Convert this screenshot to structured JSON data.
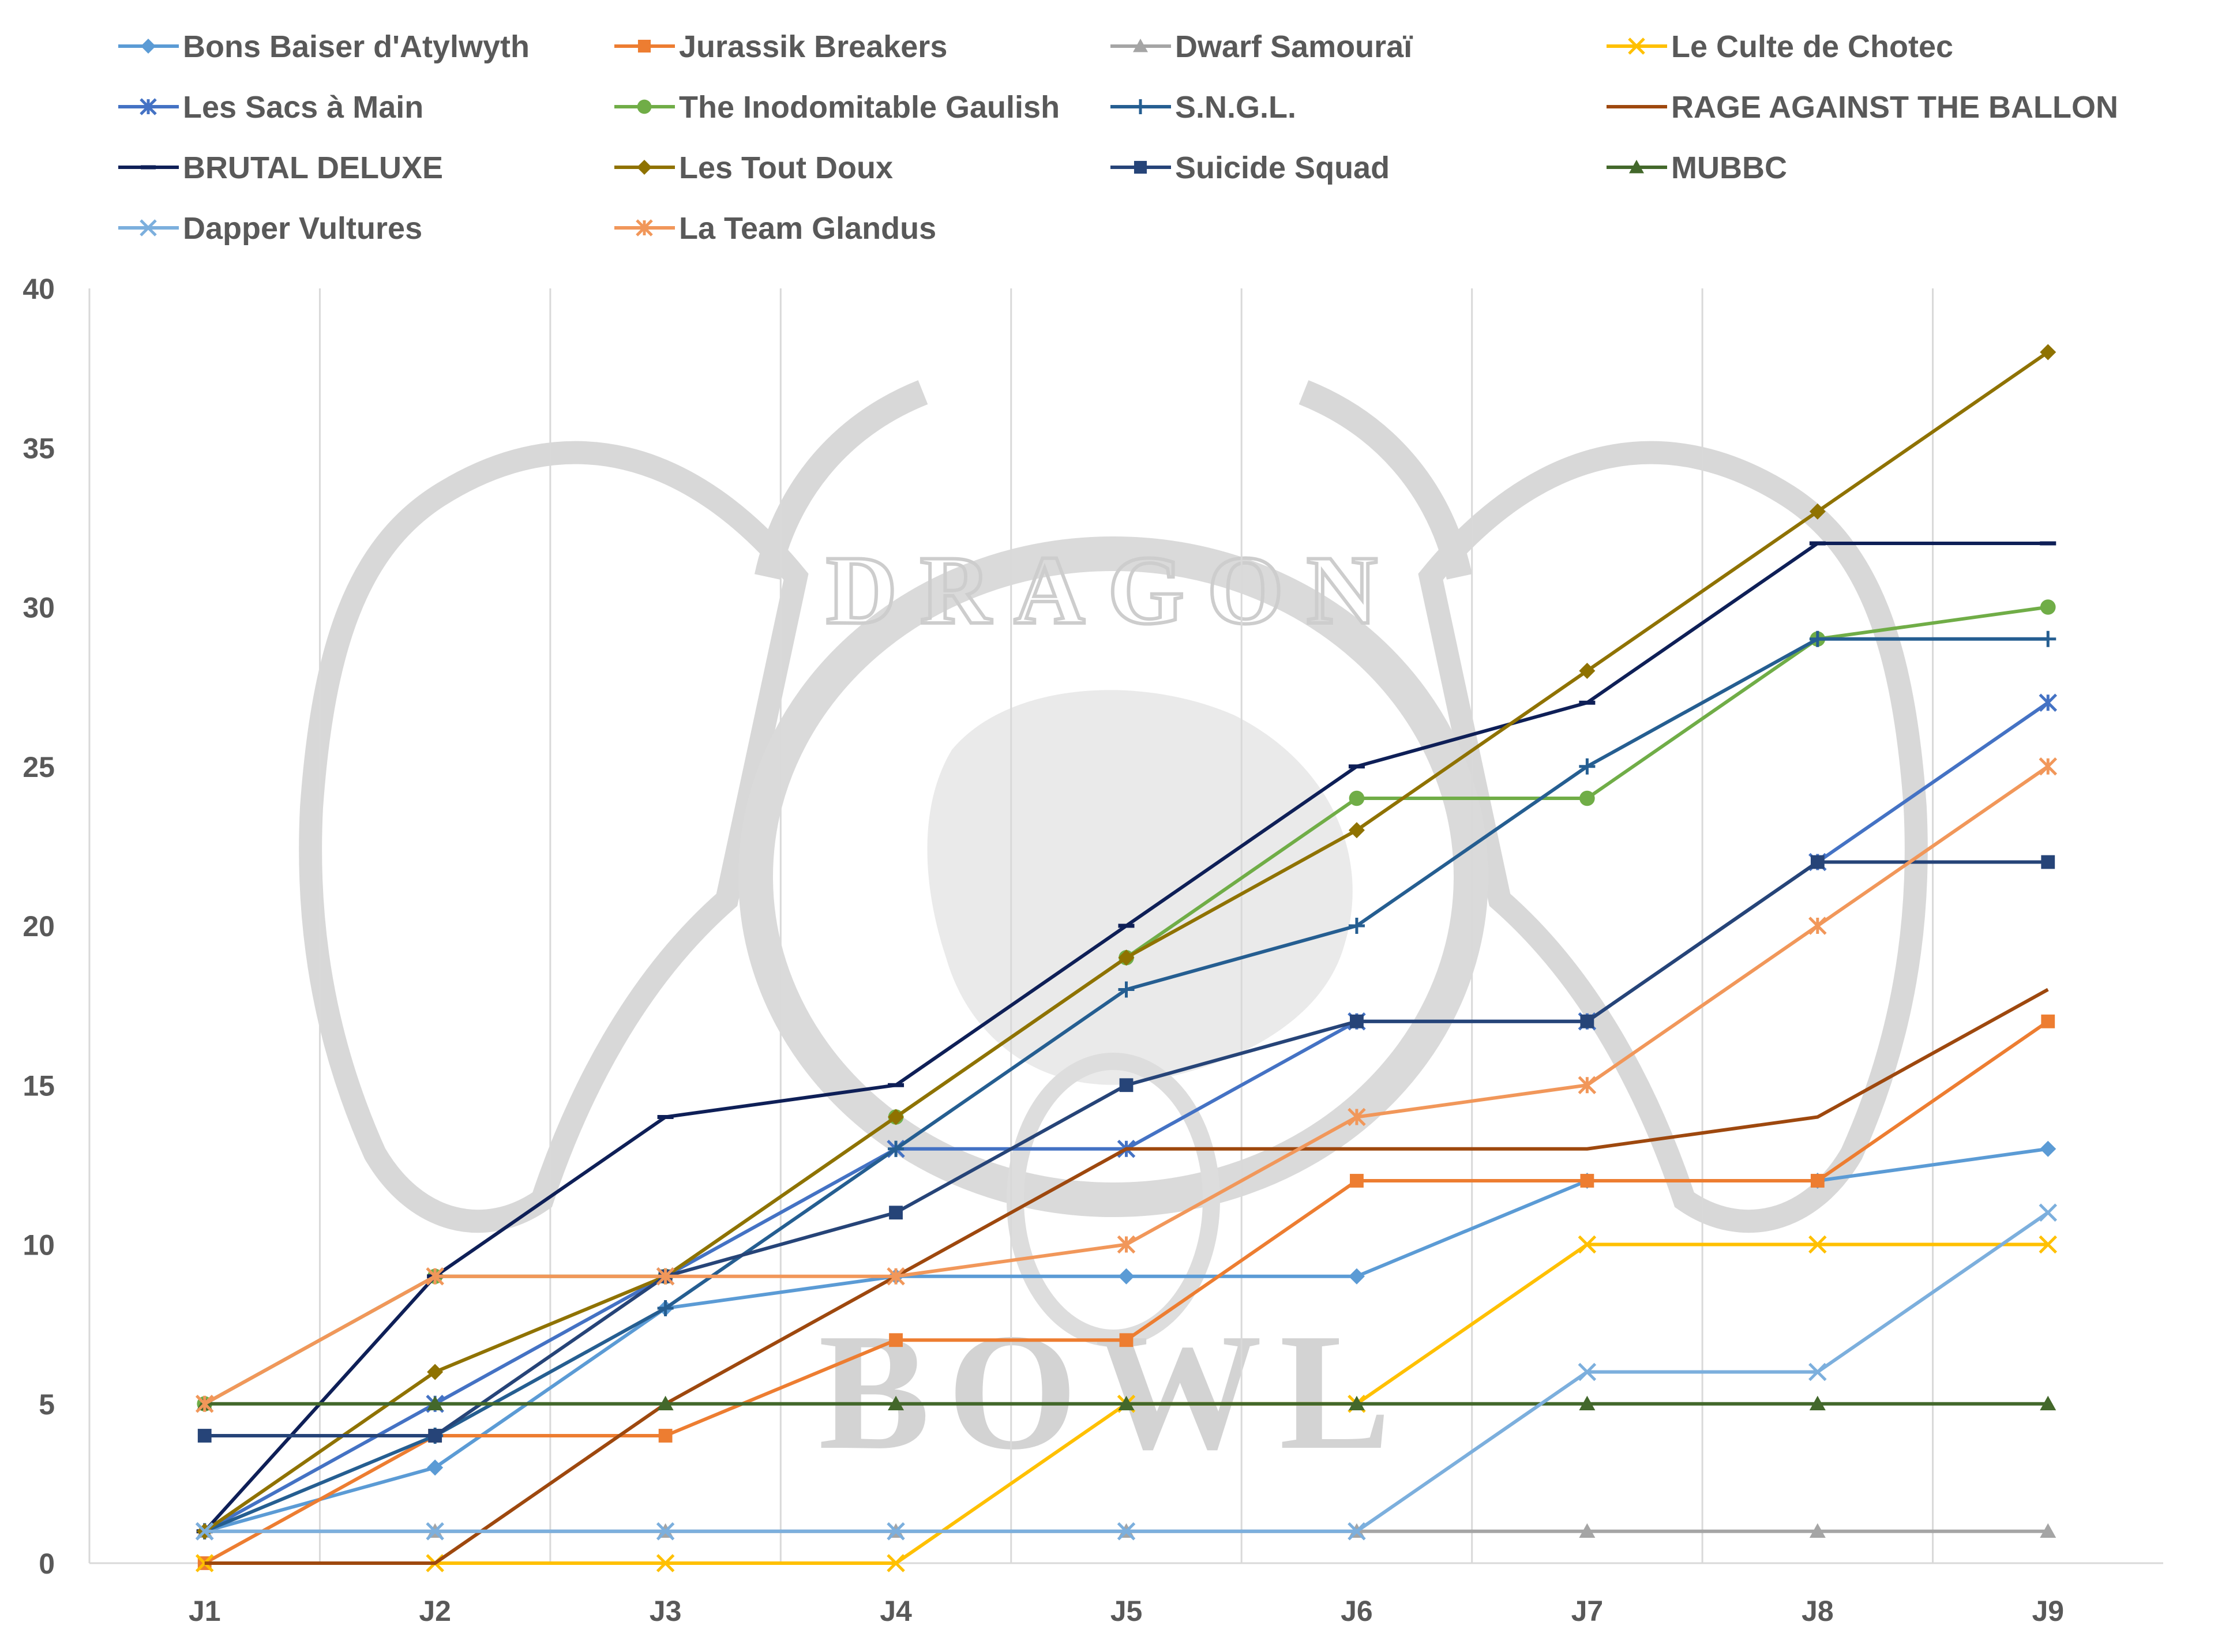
{
  "chart_data": {
    "type": "line",
    "title": "",
    "xlabel": "",
    "ylabel": "",
    "categories": [
      "J1",
      "J2",
      "J3",
      "J4",
      "J5",
      "J6",
      "J7",
      "J8",
      "J9"
    ],
    "ylim": [
      0,
      40
    ],
    "yticks": [
      0,
      5,
      10,
      15,
      20,
      25,
      30,
      35,
      40
    ],
    "grid": {
      "vertical": true,
      "horizontal": false
    },
    "legend_position": "top",
    "watermark": {
      "top_text": "DRAGON",
      "bottom_text": "BOWL"
    },
    "series": [
      {
        "name": "Bons Baiser d'Atylwyth",
        "color": "#5B9BD5",
        "marker": "diamond",
        "values": [
          1,
          3,
          8,
          9,
          9,
          9,
          12,
          12,
          13
        ]
      },
      {
        "name": "Jurassik Breakers",
        "color": "#ED7D31",
        "marker": "square",
        "values": [
          0,
          4,
          4,
          7,
          7,
          12,
          12,
          12,
          17
        ]
      },
      {
        "name": "Dwarf Samouraï",
        "color": "#A5A5A5",
        "marker": "triangle",
        "values": [
          1,
          1,
          1,
          1,
          1,
          1,
          1,
          1,
          1
        ]
      },
      {
        "name": "Le Culte de Chotec",
        "color": "#FFC000",
        "marker": "x",
        "values": [
          0,
          0,
          0,
          0,
          5,
          5,
          10,
          10,
          10
        ]
      },
      {
        "name": "Les Sacs à Main",
        "color": "#4472C4",
        "marker": "star",
        "values": [
          1,
          5,
          9,
          13,
          13,
          17,
          17,
          22,
          27
        ]
      },
      {
        "name": "The Inodomitable Gaulish",
        "color": "#70AD47",
        "marker": "circle",
        "values": [
          5,
          9,
          9,
          14,
          19,
          24,
          24,
          29,
          30
        ]
      },
      {
        "name": "S.N.G.L.",
        "color": "#255E91",
        "marker": "plus",
        "values": [
          1,
          4,
          8,
          13,
          18,
          20,
          25,
          29,
          29
        ]
      },
      {
        "name": "RAGE AGAINST THE BALLON",
        "color": "#9E480E",
        "marker": "none",
        "values": [
          0,
          0,
          5,
          9,
          13,
          13,
          13,
          14,
          18
        ]
      },
      {
        "name": "BRUTAL DELUXE",
        "color": "#0E1F57",
        "marker": "dash",
        "values": [
          1,
          9,
          14,
          15,
          20,
          25,
          27,
          32,
          32
        ]
      },
      {
        "name": "Les Tout Doux",
        "color": "#8F7200",
        "marker": "diamond",
        "values": [
          1,
          6,
          9,
          14,
          19,
          23,
          28,
          33,
          38
        ]
      },
      {
        "name": "Suicide Squad",
        "color": "#264478",
        "marker": "square",
        "values": [
          4,
          4,
          9,
          11,
          15,
          17,
          17,
          22,
          22
        ]
      },
      {
        "name": "MUBBC",
        "color": "#43682B",
        "marker": "triangle",
        "values": [
          5,
          5,
          5,
          5,
          5,
          5,
          5,
          5,
          5
        ]
      },
      {
        "name": "Dapper Vultures",
        "color": "#7CAFDD",
        "marker": "x",
        "values": [
          1,
          1,
          1,
          1,
          1,
          1,
          6,
          6,
          11
        ]
      },
      {
        "name": "La Team Glandus",
        "color": "#F1975A",
        "marker": "star",
        "values": [
          5,
          9,
          9,
          9,
          10,
          14,
          15,
          20,
          25
        ]
      }
    ]
  }
}
